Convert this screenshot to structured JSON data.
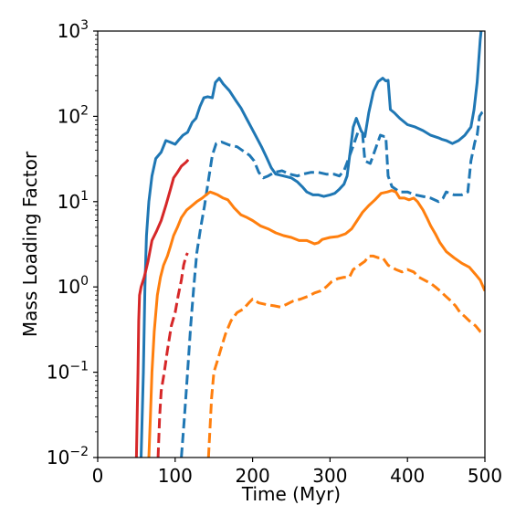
{
  "chart_data": {
    "type": "line",
    "title": "",
    "xlabel": "Time (Myr)",
    "ylabel": "Mass Loading Factor",
    "xlim": [
      0,
      500
    ],
    "ylim": [
      0.01,
      1000
    ],
    "yscale": "log",
    "grid": false,
    "x_ticks": [
      {
        "value": 0,
        "label": "0"
      },
      {
        "value": 100,
        "label": "100"
      },
      {
        "value": 200,
        "label": "200"
      },
      {
        "value": 300,
        "label": "300"
      },
      {
        "value": 400,
        "label": "400"
      },
      {
        "value": 500,
        "label": "500"
      }
    ],
    "y_ticks": [
      {
        "value": 0.01,
        "base": "10",
        "exp": "−2"
      },
      {
        "value": 0.1,
        "base": "10",
        "exp": "−1"
      },
      {
        "value": 1,
        "base": "10",
        "exp": "0"
      },
      {
        "value": 10,
        "base": "10",
        "exp": "1"
      },
      {
        "value": 100,
        "base": "10",
        "exp": "2"
      },
      {
        "value": 1000,
        "base": "10",
        "exp": "3"
      }
    ],
    "series": [
      {
        "color": "#1f77b4",
        "style": "solid",
        "points": [
          [
            48,
            0.005
          ],
          [
            56,
            0.01
          ],
          [
            59,
            0.1
          ],
          [
            61,
            1
          ],
          [
            63,
            4
          ],
          [
            66,
            10
          ],
          [
            70,
            20
          ],
          [
            75,
            32
          ],
          [
            82,
            38
          ],
          [
            88,
            52
          ],
          [
            93,
            50
          ],
          [
            100,
            47
          ],
          [
            104,
            52
          ],
          [
            110,
            60
          ],
          [
            116,
            65
          ],
          [
            122,
            85
          ],
          [
            127,
            95
          ],
          [
            132,
            130
          ],
          [
            137,
            165
          ],
          [
            142,
            170
          ],
          [
            148,
            165
          ],
          [
            152,
            250
          ],
          [
            157,
            280
          ],
          [
            162,
            240
          ],
          [
            170,
            200
          ],
          [
            178,
            155
          ],
          [
            185,
            125
          ],
          [
            192,
            95
          ],
          [
            198,
            75
          ],
          [
            205,
            57
          ],
          [
            212,
            43
          ],
          [
            218,
            33
          ],
          [
            224,
            25
          ],
          [
            230,
            21
          ],
          [
            240,
            20
          ],
          [
            250,
            19
          ],
          [
            258,
            17
          ],
          [
            264,
            15
          ],
          [
            270,
            13
          ],
          [
            278,
            12
          ],
          [
            285,
            12
          ],
          [
            292,
            11.5
          ],
          [
            300,
            12
          ],
          [
            306,
            12.5
          ],
          [
            312,
            14
          ],
          [
            318,
            16
          ],
          [
            322,
            20
          ],
          [
            326,
            38
          ],
          [
            330,
            75
          ],
          [
            334,
            95
          ],
          [
            340,
            68
          ],
          [
            345,
            58
          ],
          [
            350,
            110
          ],
          [
            356,
            195
          ],
          [
            362,
            255
          ],
          [
            368,
            280
          ],
          [
            372,
            260
          ],
          [
            375,
            265
          ],
          [
            378,
            120
          ],
          [
            383,
            110
          ],
          [
            390,
            95
          ],
          [
            400,
            80
          ],
          [
            410,
            75
          ],
          [
            420,
            68
          ],
          [
            430,
            60
          ],
          [
            440,
            56
          ],
          [
            444,
            54
          ],
          [
            450,
            52
          ],
          [
            458,
            48
          ],
          [
            466,
            52
          ],
          [
            474,
            60
          ],
          [
            482,
            75
          ],
          [
            486,
            120
          ],
          [
            490,
            250
          ],
          [
            494,
            800
          ],
          [
            496,
            1200
          ]
        ]
      },
      {
        "color": "#1f77b4",
        "style": "dashed",
        "points": [
          [
            108,
            0.01
          ],
          [
            112,
            0.03
          ],
          [
            116,
            0.1
          ],
          [
            120,
            0.35
          ],
          [
            124,
            1
          ],
          [
            128,
            2.5
          ],
          [
            133,
            5
          ],
          [
            138,
            9
          ],
          [
            143,
            18
          ],
          [
            148,
            35
          ],
          [
            153,
            48
          ],
          [
            160,
            50
          ],
          [
            170,
            46
          ],
          [
            180,
            44
          ],
          [
            190,
            38
          ],
          [
            196,
            35
          ],
          [
            202,
            30
          ],
          [
            208,
            22
          ],
          [
            214,
            19
          ],
          [
            220,
            20
          ],
          [
            228,
            22
          ],
          [
            238,
            23
          ],
          [
            248,
            21
          ],
          [
            258,
            20
          ],
          [
            265,
            21
          ],
          [
            275,
            22
          ],
          [
            285,
            22
          ],
          [
            295,
            21
          ],
          [
            305,
            21
          ],
          [
            312,
            20
          ],
          [
            318,
            23
          ],
          [
            324,
            32
          ],
          [
            330,
            45
          ],
          [
            336,
            65
          ],
          [
            342,
            62
          ],
          [
            345,
            30
          ],
          [
            352,
            28
          ],
          [
            358,
            40
          ],
          [
            365,
            60
          ],
          [
            370,
            58
          ],
          [
            372,
            58
          ],
          [
            375,
            20
          ],
          [
            380,
            15
          ],
          [
            390,
            13
          ],
          [
            400,
            13
          ],
          [
            410,
            12
          ],
          [
            420,
            11.5
          ],
          [
            430,
            11
          ],
          [
            440,
            10
          ],
          [
            446,
            11
          ],
          [
            450,
            13
          ],
          [
            455,
            12.5
          ],
          [
            460,
            12
          ],
          [
            470,
            12
          ],
          [
            478,
            13
          ],
          [
            482,
            30
          ],
          [
            487,
            50
          ],
          [
            490,
            60
          ],
          [
            493,
            100
          ],
          [
            496,
            110
          ],
          [
            500,
            115
          ]
        ]
      },
      {
        "color": "#ff7f0e",
        "style": "solid",
        "points": [
          [
            66,
            0.01
          ],
          [
            68,
            0.03
          ],
          [
            70,
            0.1
          ],
          [
            73,
            0.3
          ],
          [
            77,
            0.8
          ],
          [
            81,
            1.3
          ],
          [
            85,
            1.8
          ],
          [
            90,
            2.3
          ],
          [
            94,
            3
          ],
          [
            98,
            4
          ],
          [
            103,
            5
          ],
          [
            108,
            6.5
          ],
          [
            115,
            8
          ],
          [
            120,
            8.7
          ],
          [
            128,
            10
          ],
          [
            135,
            11
          ],
          [
            140,
            12
          ],
          [
            145,
            13
          ],
          [
            150,
            12.5
          ],
          [
            155,
            12
          ],
          [
            162,
            11
          ],
          [
            168,
            10.5
          ],
          [
            176,
            8.5
          ],
          [
            185,
            7
          ],
          [
            193,
            6.5
          ],
          [
            200,
            6
          ],
          [
            210,
            5.2
          ],
          [
            220,
            4.8
          ],
          [
            230,
            4.3
          ],
          [
            240,
            4
          ],
          [
            250,
            3.8
          ],
          [
            260,
            3.5
          ],
          [
            270,
            3.5
          ],
          [
            280,
            3.2
          ],
          [
            285,
            3.3
          ],
          [
            290,
            3.6
          ],
          [
            300,
            3.8
          ],
          [
            310,
            3.9
          ],
          [
            320,
            4.2
          ],
          [
            328,
            4.8
          ],
          [
            335,
            6
          ],
          [
            342,
            7.5
          ],
          [
            350,
            9
          ],
          [
            358,
            10.5
          ],
          [
            366,
            12.5
          ],
          [
            374,
            13
          ],
          [
            380,
            13.5
          ],
          [
            385,
            13
          ],
          [
            390,
            11
          ],
          [
            396,
            11
          ],
          [
            402,
            10.5
          ],
          [
            408,
            11
          ],
          [
            413,
            10
          ],
          [
            420,
            8
          ],
          [
            425,
            6.5
          ],
          [
            430,
            5.2
          ],
          [
            436,
            4.2
          ],
          [
            442,
            3.3
          ],
          [
            450,
            2.6
          ],
          [
            460,
            2.2
          ],
          [
            470,
            1.9
          ],
          [
            480,
            1.7
          ],
          [
            488,
            1.4
          ],
          [
            494,
            1.2
          ],
          [
            500,
            0.9
          ]
        ]
      },
      {
        "color": "#ff7f0e",
        "style": "dashed",
        "points": [
          [
            143,
            0.01
          ],
          [
            147,
            0.05
          ],
          [
            150,
            0.1
          ],
          [
            155,
            0.14
          ],
          [
            160,
            0.2
          ],
          [
            165,
            0.28
          ],
          [
            172,
            0.4
          ],
          [
            180,
            0.5
          ],
          [
            188,
            0.55
          ],
          [
            195,
            0.65
          ],
          [
            200,
            0.72
          ],
          [
            208,
            0.65
          ],
          [
            218,
            0.62
          ],
          [
            228,
            0.6
          ],
          [
            236,
            0.58
          ],
          [
            243,
            0.62
          ],
          [
            252,
            0.68
          ],
          [
            262,
            0.72
          ],
          [
            272,
            0.78
          ],
          [
            280,
            0.85
          ],
          [
            288,
            0.9
          ],
          [
            295,
            1
          ],
          [
            302,
            1.15
          ],
          [
            310,
            1.25
          ],
          [
            318,
            1.3
          ],
          [
            325,
            1.3
          ],
          [
            330,
            1.6
          ],
          [
            338,
            1.8
          ],
          [
            345,
            2
          ],
          [
            350,
            2.3
          ],
          [
            356,
            2.3
          ],
          [
            362,
            2.2
          ],
          [
            368,
            2.2
          ],
          [
            375,
            1.8
          ],
          [
            385,
            1.6
          ],
          [
            393,
            1.5
          ],
          [
            400,
            1.6
          ],
          [
            408,
            1.5
          ],
          [
            415,
            1.3
          ],
          [
            422,
            1.2
          ],
          [
            430,
            1.1
          ],
          [
            436,
            1
          ],
          [
            442,
            0.9
          ],
          [
            448,
            0.8
          ],
          [
            455,
            0.7
          ],
          [
            462,
            0.6
          ],
          [
            468,
            0.5
          ],
          [
            474,
            0.45
          ],
          [
            480,
            0.4
          ],
          [
            488,
            0.35
          ],
          [
            494,
            0.3
          ],
          [
            500,
            0.28
          ]
        ]
      },
      {
        "color": "#d62728",
        "style": "solid",
        "points": [
          [
            50,
            0.01
          ],
          [
            51,
            0.03
          ],
          [
            52,
            0.1
          ],
          [
            53,
            0.4
          ],
          [
            54,
            0.8
          ],
          [
            56,
            1
          ],
          [
            60,
            1.3
          ],
          [
            65,
            2
          ],
          [
            70,
            3.5
          ],
          [
            76,
            4.5
          ],
          [
            82,
            6
          ],
          [
            88,
            9
          ],
          [
            94,
            14
          ],
          [
            98,
            19
          ],
          [
            103,
            22
          ],
          [
            108,
            26
          ],
          [
            114,
            29
          ],
          [
            117,
            31
          ]
        ]
      },
      {
        "color": "#d62728",
        "style": "dashed",
        "points": [
          [
            78,
            0.01
          ],
          [
            80,
            0.03
          ],
          [
            82,
            0.06
          ],
          [
            86,
            0.1
          ],
          [
            90,
            0.18
          ],
          [
            95,
            0.35
          ],
          [
            100,
            0.5
          ],
          [
            104,
            0.8
          ],
          [
            108,
            1.2
          ],
          [
            111,
            1.8
          ],
          [
            114,
            2.3
          ],
          [
            116,
            2.5
          ]
        ]
      }
    ]
  }
}
